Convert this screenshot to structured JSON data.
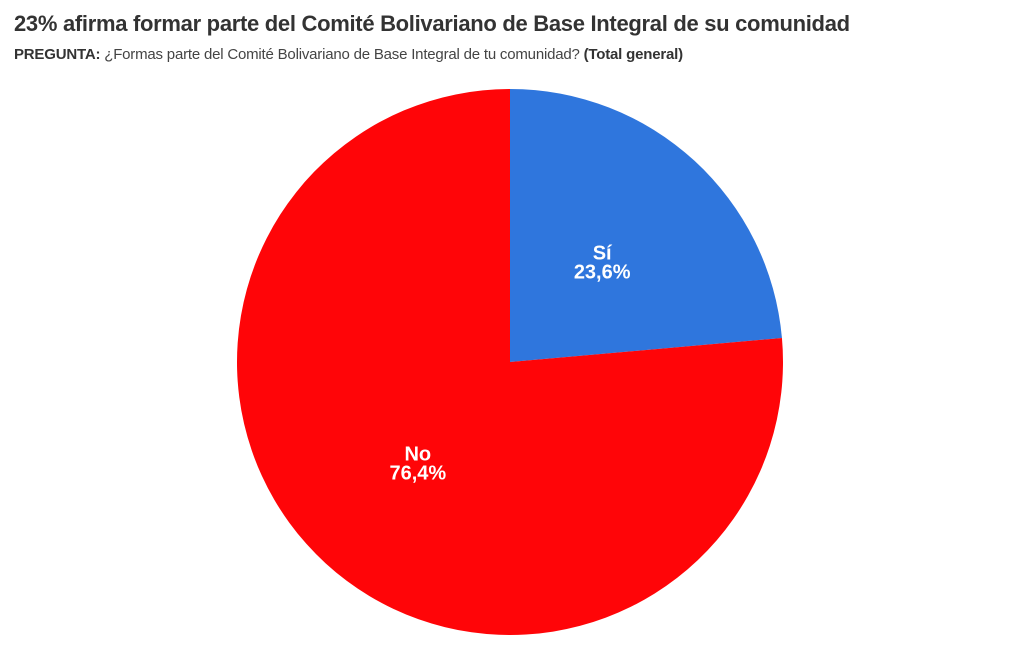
{
  "header": {
    "title": "23% afirma formar parte del Comité Bolivariano de Base Integral de su comunidad",
    "question_prefix": "PREGUNTA:",
    "question_text": " ¿Formas parte del Comité Bolivariano de Base Integral de tu comunidad? ",
    "question_suffix": "(Total general)"
  },
  "chart_data": {
    "type": "pie",
    "title": "23% afirma formar parte del Comité Bolivariano de Base Integral de su comunidad",
    "subtitle": "PREGUNTA: ¿Formas parte del Comité Bolivariano de Base Integral de tu comunidad? (Total general)",
    "categories": [
      "Sí",
      "No"
    ],
    "values": [
      23.6,
      76.4
    ],
    "value_labels": [
      "23,6%",
      "76,4%"
    ],
    "colors": [
      "#2f76dd",
      "#ff0508"
    ],
    "start_angle": "12 o'clock, clockwise",
    "legend": "none (labels inside slices)"
  }
}
